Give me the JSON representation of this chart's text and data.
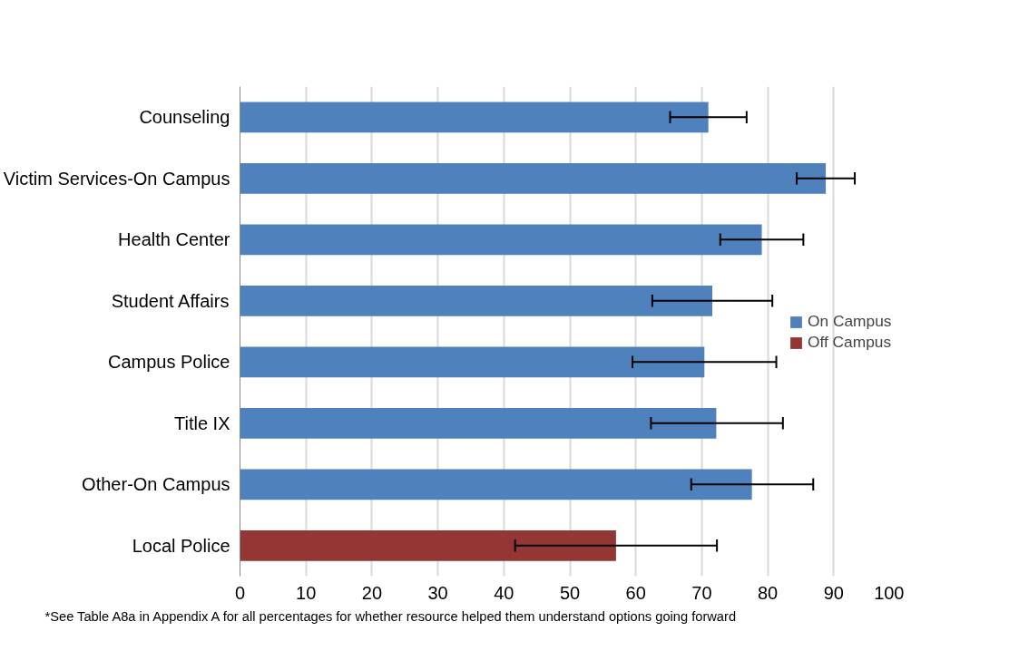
{
  "chart_data": {
    "type": "bar",
    "orientation": "horizontal",
    "categories": [
      "Counseling",
      "Victim Services-On Campus",
      "Health Center",
      "Student Affairs",
      "Campus Police",
      "Title IX",
      "Other-On Campus",
      "Local Police"
    ],
    "series": [
      {
        "name": "On Campus",
        "color": "#4f81bd",
        "values": [
          71.0,
          88.8,
          79.1,
          71.6,
          70.4,
          72.2,
          77.6,
          null
        ],
        "errors": [
          [
            65.2,
            76.8
          ],
          [
            84.4,
            93.2
          ],
          [
            72.8,
            85.4
          ],
          [
            62.5,
            80.7
          ],
          [
            59.5,
            81.3
          ],
          [
            62.3,
            82.3
          ],
          [
            68.4,
            86.9
          ],
          null
        ]
      },
      {
        "name": "Off Campus",
        "color": "#943634",
        "values": [
          null,
          null,
          null,
          null,
          null,
          null,
          null,
          57.0
        ],
        "errors": [
          null,
          null,
          null,
          null,
          null,
          null,
          null,
          [
            41.7,
            72.3
          ]
        ]
      }
    ],
    "xlim": [
      0,
      100
    ],
    "xticks": [
      0,
      10,
      20,
      30,
      40,
      50,
      60,
      70,
      80,
      90,
      100
    ],
    "grid": "x",
    "legend": "right",
    "annotations": [
      "*See Table A8a in Appendix A for all percentages for whether resource helped them understand options going forward"
    ]
  }
}
